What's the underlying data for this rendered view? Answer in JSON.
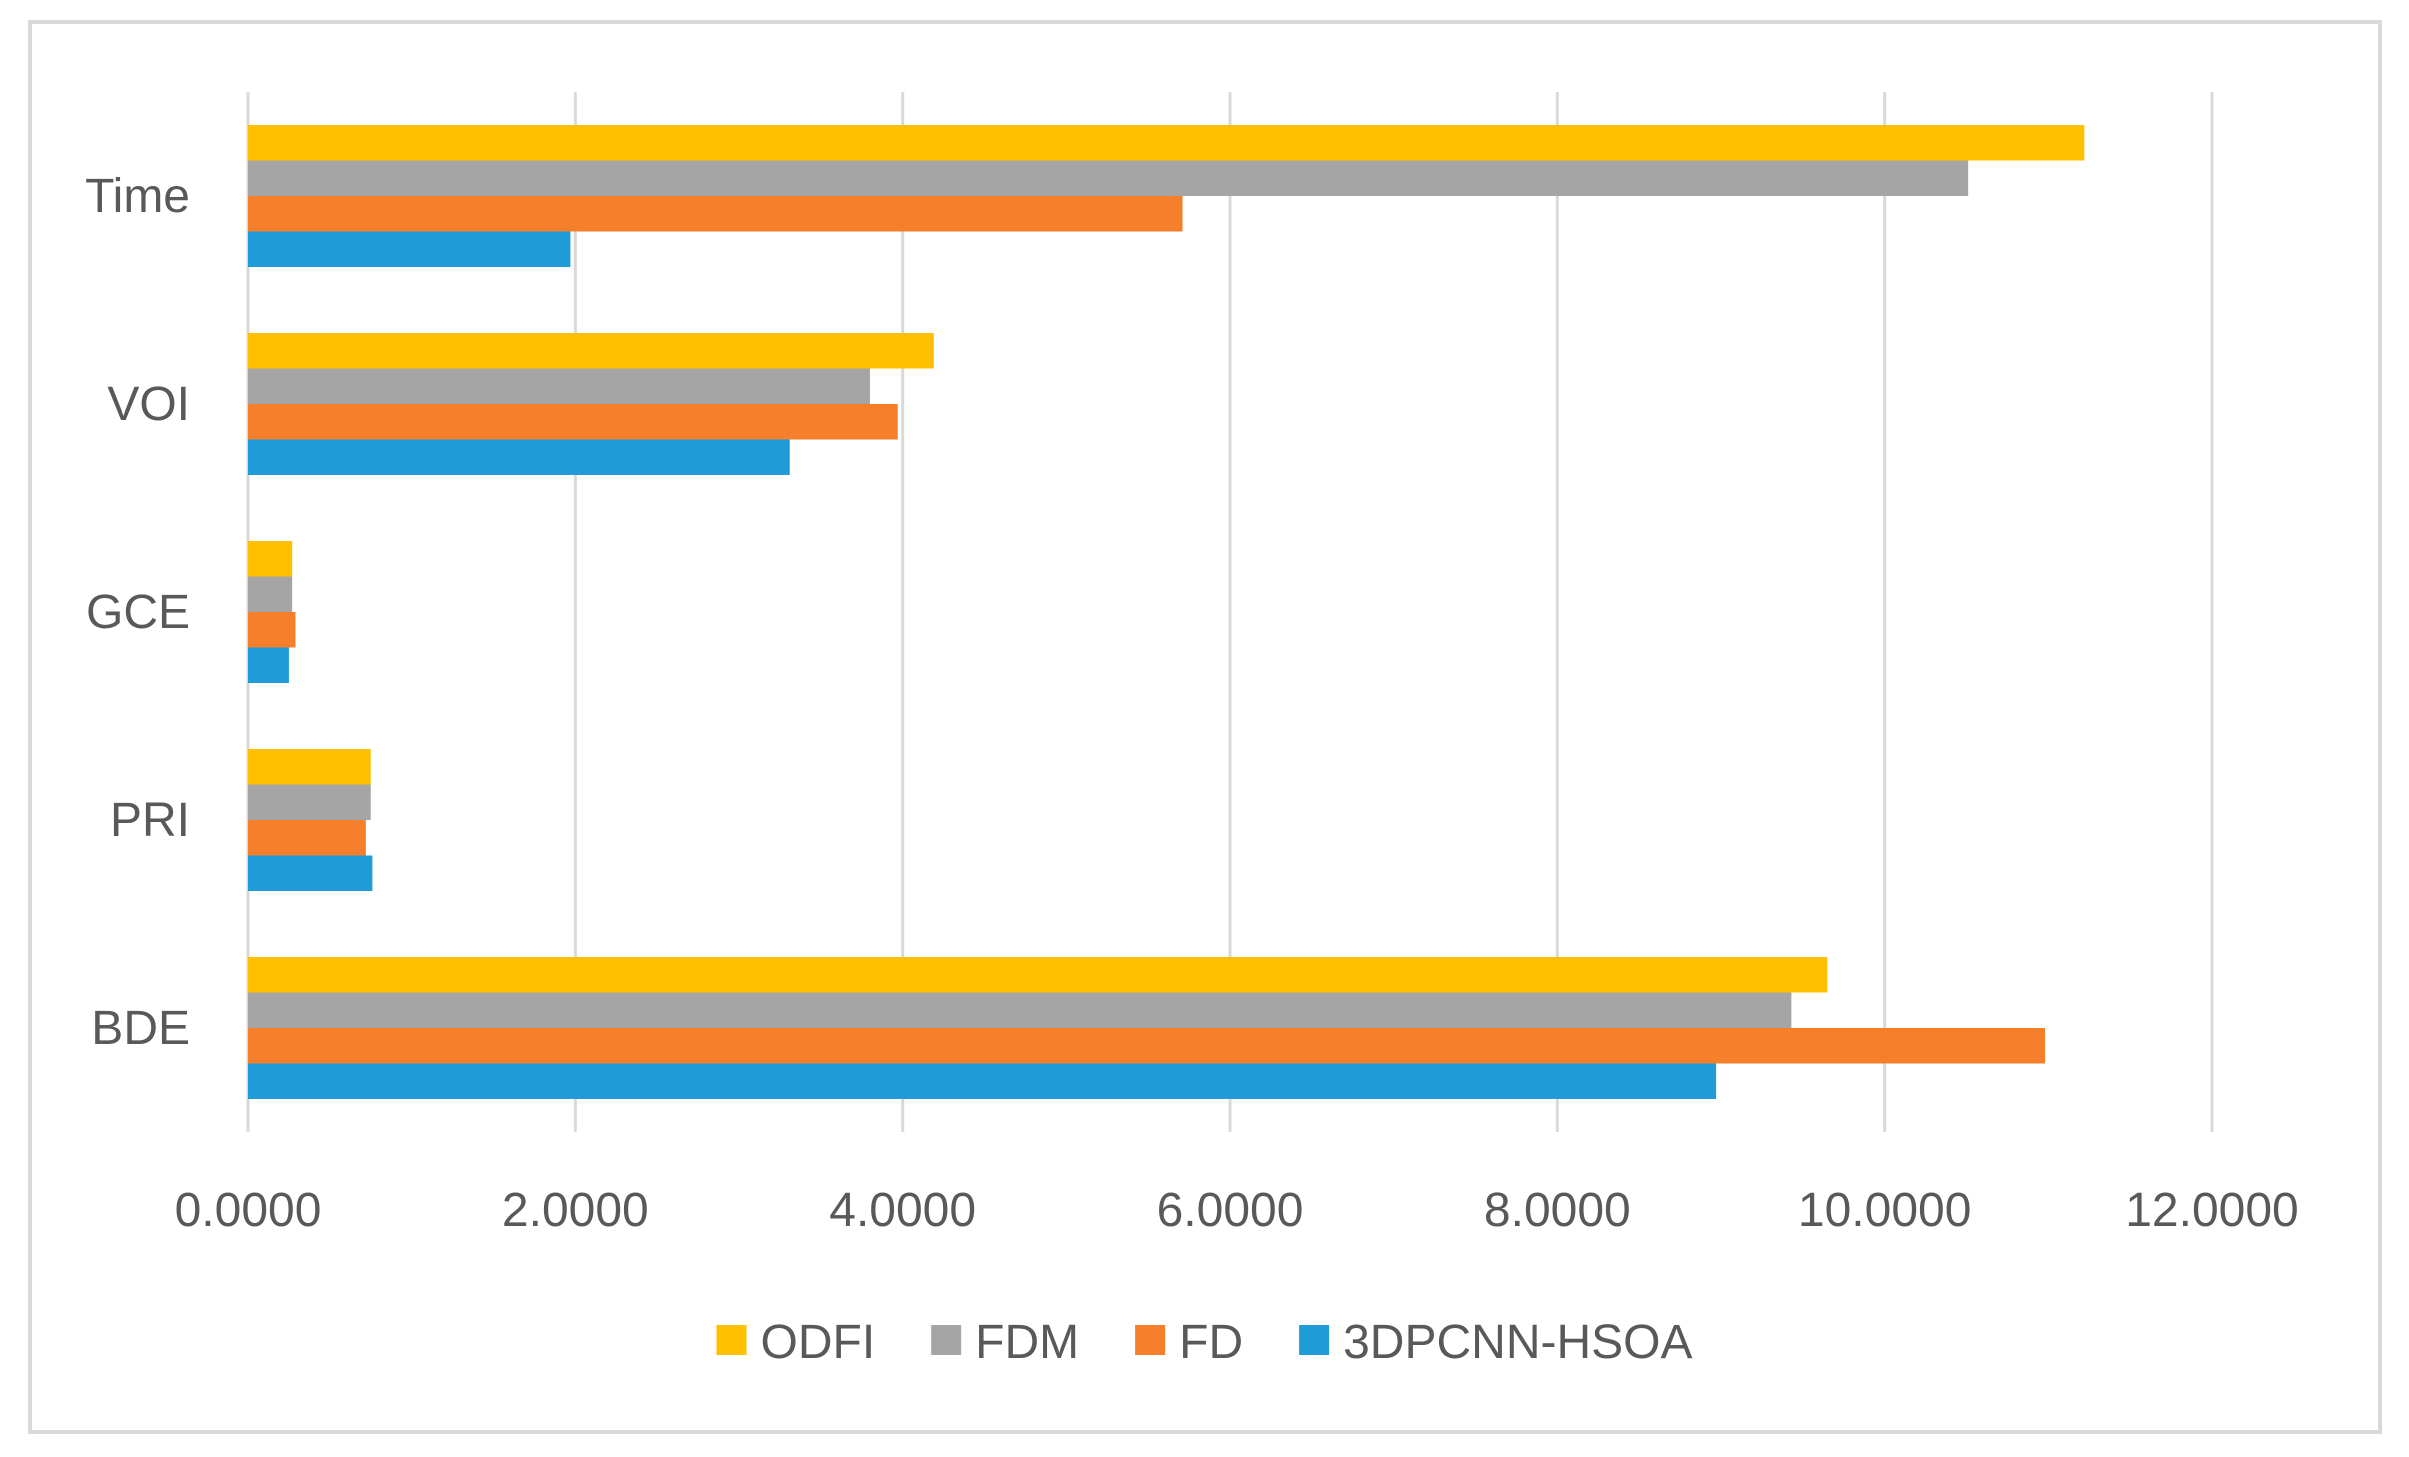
{
  "chart_data": {
    "type": "bar",
    "orientation": "horizontal",
    "title": "",
    "xlabel": "",
    "ylabel": "",
    "categories": [
      "BDE",
      "PRI",
      "GCE",
      "VOI",
      "Time"
    ],
    "xlim": [
      0,
      12
    ],
    "tick_values": [
      0,
      2,
      4,
      6,
      8,
      10,
      12
    ],
    "tick_labels": [
      "0.0000",
      "2.0000",
      "4.0000",
      "6.0000",
      "8.0000",
      "10.0000",
      "12.0000"
    ],
    "grid": "vertical",
    "legend_position": "bottom",
    "series": [
      {
        "name": "3DPCNN-HSOA",
        "color": "#1f9bd7",
        "values": [
          8.97,
          0.76,
          0.25,
          3.31,
          1.97
        ]
      },
      {
        "name": "FD",
        "color": "#f57f2a",
        "values": [
          10.98,
          0.72,
          0.29,
          3.97,
          5.71
        ]
      },
      {
        "name": "FDM",
        "color": "#a5a5a5",
        "values": [
          9.43,
          0.75,
          0.27,
          3.8,
          10.51
        ]
      },
      {
        "name": "ODFI",
        "color": "#ffc000",
        "values": [
          9.65,
          0.75,
          0.27,
          4.19,
          11.22
        ]
      }
    ],
    "legend_order": [
      "ODFI",
      "FDM",
      "FD",
      "3DPCNN-HSOA"
    ]
  }
}
